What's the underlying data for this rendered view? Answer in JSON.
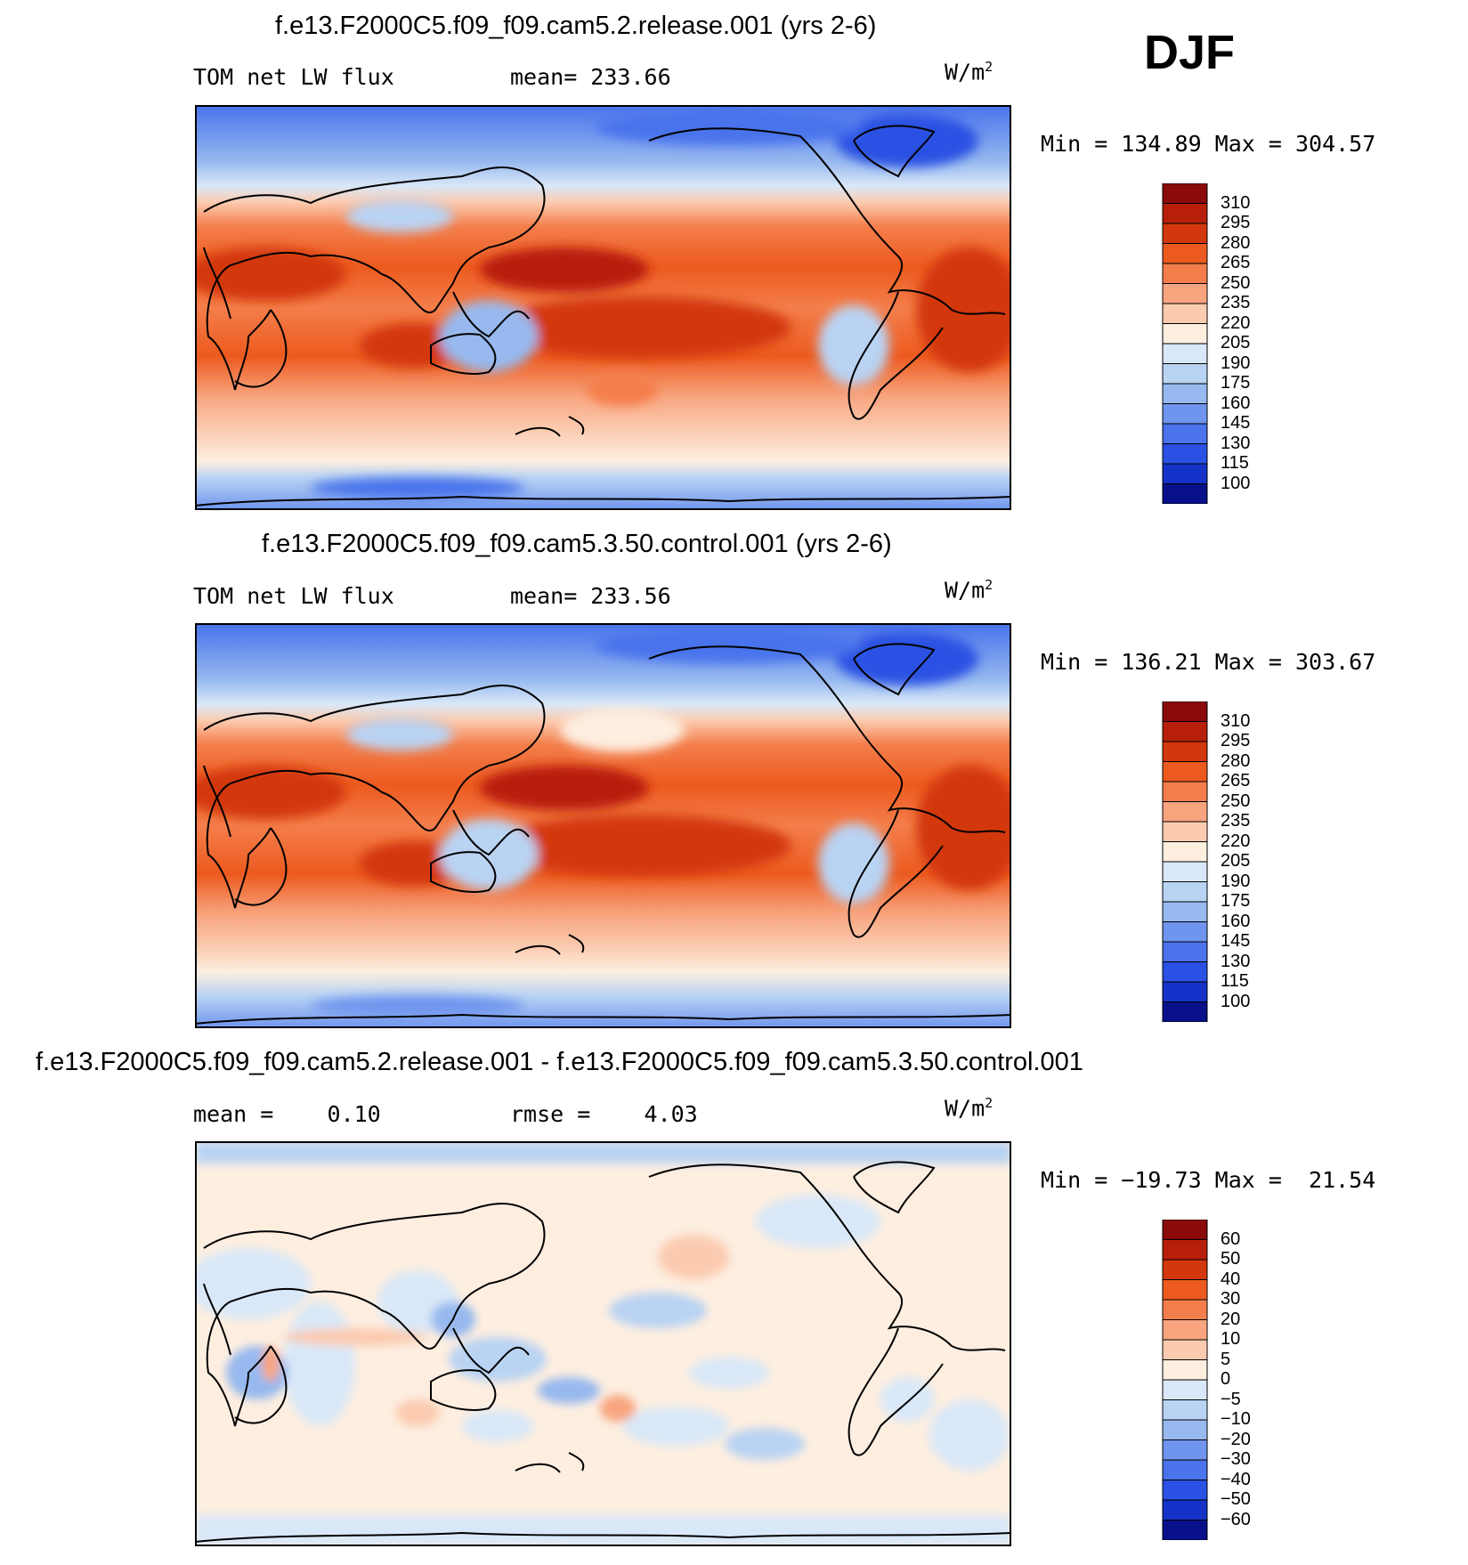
{
  "season": "DJF",
  "panels": [
    {
      "title": "f.e13.F2000C5.f09_f09.cam5.2.release.001 (yrs 2-6)",
      "left_label": "TOM net LW flux",
      "center_label": "mean= 233.66",
      "units": "W/m",
      "units_exp": "2",
      "minmax": "Min = 134.89 Max = 304.57",
      "colorbar_labels": [
        "310",
        "295",
        "280",
        "265",
        "250",
        "235",
        "220",
        "205",
        "190",
        "175",
        "160",
        "145",
        "130",
        "115",
        "100"
      ]
    },
    {
      "title": "f.e13.F2000C5.f09_f09.cam5.3.50.control.001 (yrs 2-6)",
      "left_label": "TOM net LW flux",
      "center_label": "mean= 233.56",
      "units": "W/m",
      "units_exp": "2",
      "minmax": "Min = 136.21 Max = 303.67",
      "colorbar_labels": [
        "310",
        "295",
        "280",
        "265",
        "250",
        "235",
        "220",
        "205",
        "190",
        "175",
        "160",
        "145",
        "130",
        "115",
        "100"
      ]
    },
    {
      "title": "f.e13.F2000C5.f09_f09.cam5.2.release.001 - f.e13.F2000C5.f09_f09.cam5.3.50.control.001",
      "left_label": "mean =    0.10",
      "center_label": "rmse =    4.03",
      "units": "W/m",
      "units_exp": "2",
      "minmax": "Min = −19.73 Max =  21.54",
      "colorbar_labels": [
        "60",
        "50",
        "40",
        "30",
        "20",
        "10",
        "5",
        "0",
        "−5",
        "−10",
        "−20",
        "−30",
        "−40",
        "−50",
        "−60"
      ]
    }
  ],
  "colors": {
    "palette": [
      "#8b0a0a",
      "#b71f0a",
      "#d3370d",
      "#ec5a1f",
      "#f47e4b",
      "#f8a57f",
      "#fbcbb0",
      "#fdeee0",
      "#d9e8f8",
      "#b9d3f3",
      "#97b9ef",
      "#6f95ee",
      "#4a73ec",
      "#2a51e3",
      "#1532c8",
      "#08108a"
    ]
  }
}
